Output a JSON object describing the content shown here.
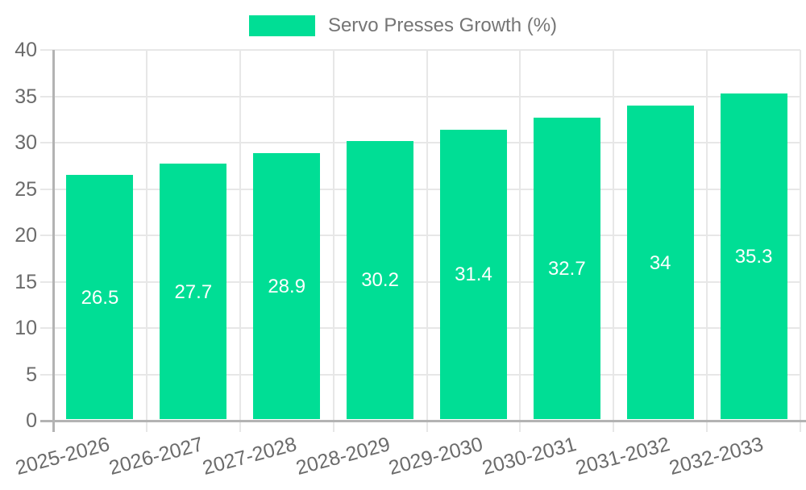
{
  "legend": {
    "label": "Servo Presses Growth (%)"
  },
  "colors": {
    "bar": "#00DE95",
    "gridline": "#e7e7e7",
    "axis_line": "#b3b3b3",
    "tick_text": "#6b6b6b",
    "legend_text": "#757575",
    "bar_label_text": "#ffffff"
  },
  "chart_data": {
    "type": "bar",
    "title": "",
    "legend_entries": [
      "Servo Presses Growth (%)"
    ],
    "legend_position": "top",
    "categories": [
      "2025-2026",
      "2026-2027",
      "2027-2028",
      "2028-2029",
      "2029-2030",
      "2030-2031",
      "2031-2032",
      "2032-2033"
    ],
    "series": [
      {
        "name": "Servo Presses Growth (%)",
        "values": [
          26.5,
          27.7,
          28.9,
          30.2,
          31.4,
          32.7,
          34,
          35.3
        ]
      }
    ],
    "value_labels": [
      "26.5",
      "27.7",
      "28.9",
      "30.2",
      "31.4",
      "32.7",
      "34",
      "35.3"
    ],
    "xlabel": "",
    "ylabel": "",
    "ylim": [
      0,
      40
    ],
    "yticks": [
      0,
      5,
      10,
      15,
      20,
      25,
      30,
      35,
      40
    ],
    "grid": true,
    "x_label_rotation_deg": -15
  }
}
